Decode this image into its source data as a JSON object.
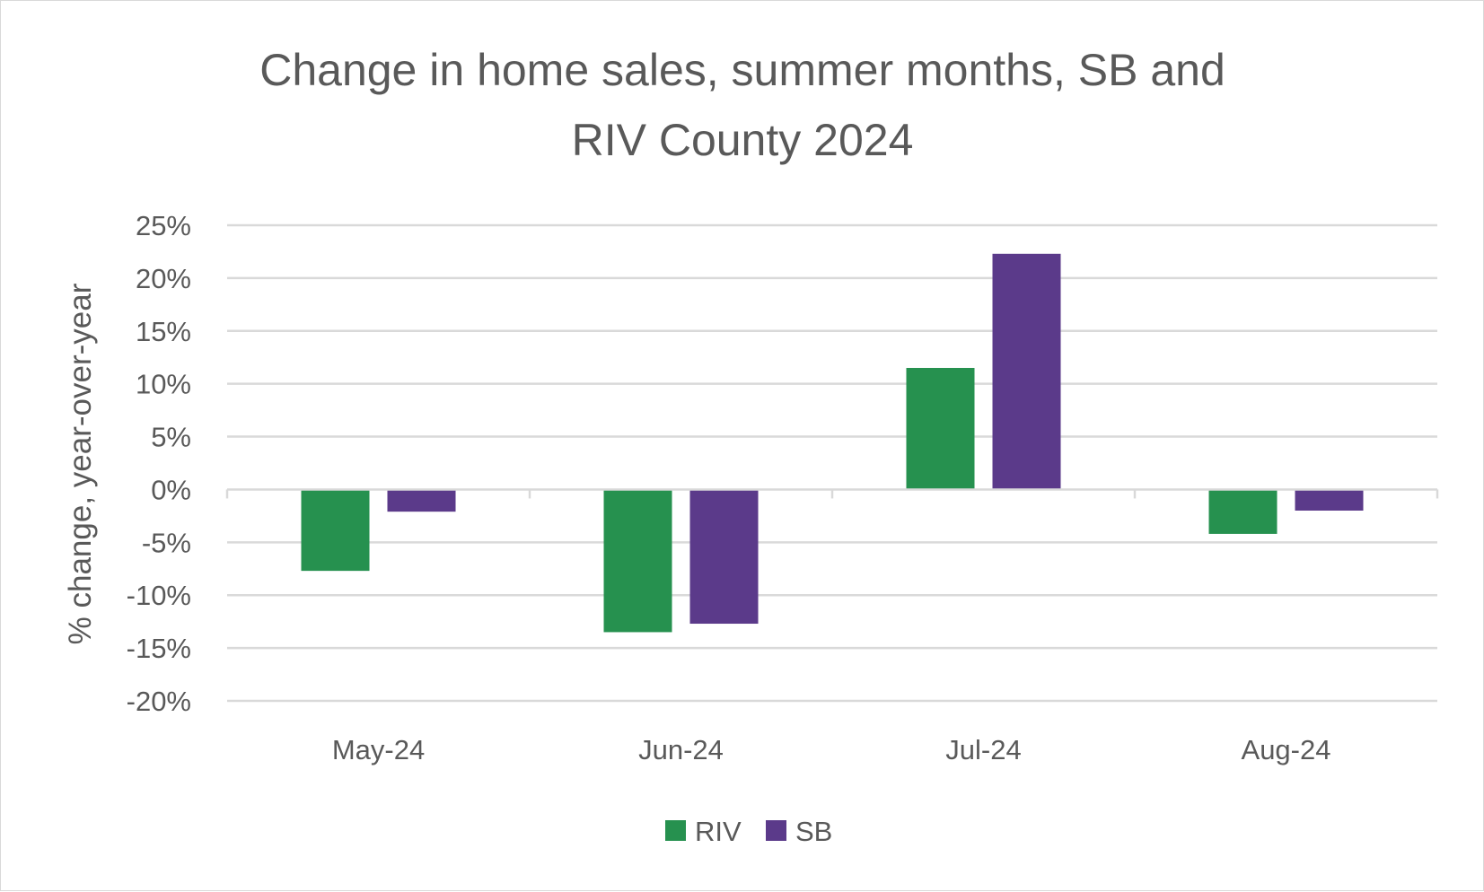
{
  "chart_data": {
    "type": "bar",
    "title_lines": [
      "Change in home sales, summer months, SB and",
      "RIV County 2024"
    ],
    "ylabel": "% change, year-over-year",
    "xlabel": "",
    "categories": [
      "May-24",
      "Jun-24",
      "Jul-24",
      "Aug-24"
    ],
    "series": [
      {
        "name": "RIV",
        "color": "#26914f",
        "values": [
          -7.7,
          -13.5,
          11.5,
          -4.2
        ]
      },
      {
        "name": "SB",
        "color": "#5b3a8a",
        "values": [
          -2.1,
          -12.7,
          22.3,
          -2.0
        ]
      }
    ],
    "ylim": [
      -20,
      25
    ],
    "yticks": [
      25,
      20,
      15,
      10,
      5,
      0,
      -5,
      -10,
      -15,
      -20
    ],
    "ytick_labels": [
      "25%",
      "20%",
      "15%",
      "10%",
      "5%",
      "0%",
      "-5%",
      "-10%",
      "-15%",
      "-20%"
    ],
    "grid": true,
    "legend_position": "bottom"
  }
}
